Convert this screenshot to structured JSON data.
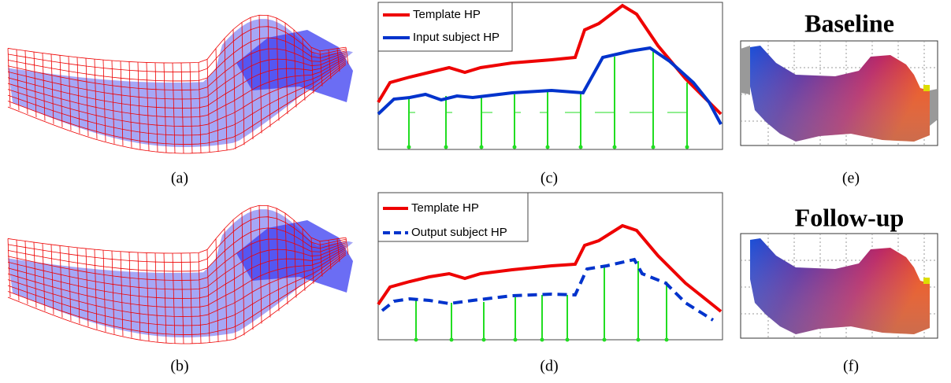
{
  "panels": [
    {
      "label": "(a)"
    },
    {
      "label": "(b)"
    },
    {
      "label": "(c)",
      "legend": [
        "Template HP",
        "Input subject HP"
      ]
    },
    {
      "label": "(d)",
      "legend": [
        "Template HP",
        "Output subject HP"
      ]
    },
    {
      "label": "(e)",
      "title": "Baseline"
    },
    {
      "label": "(f)",
      "title": "Follow-up"
    }
  ]
}
